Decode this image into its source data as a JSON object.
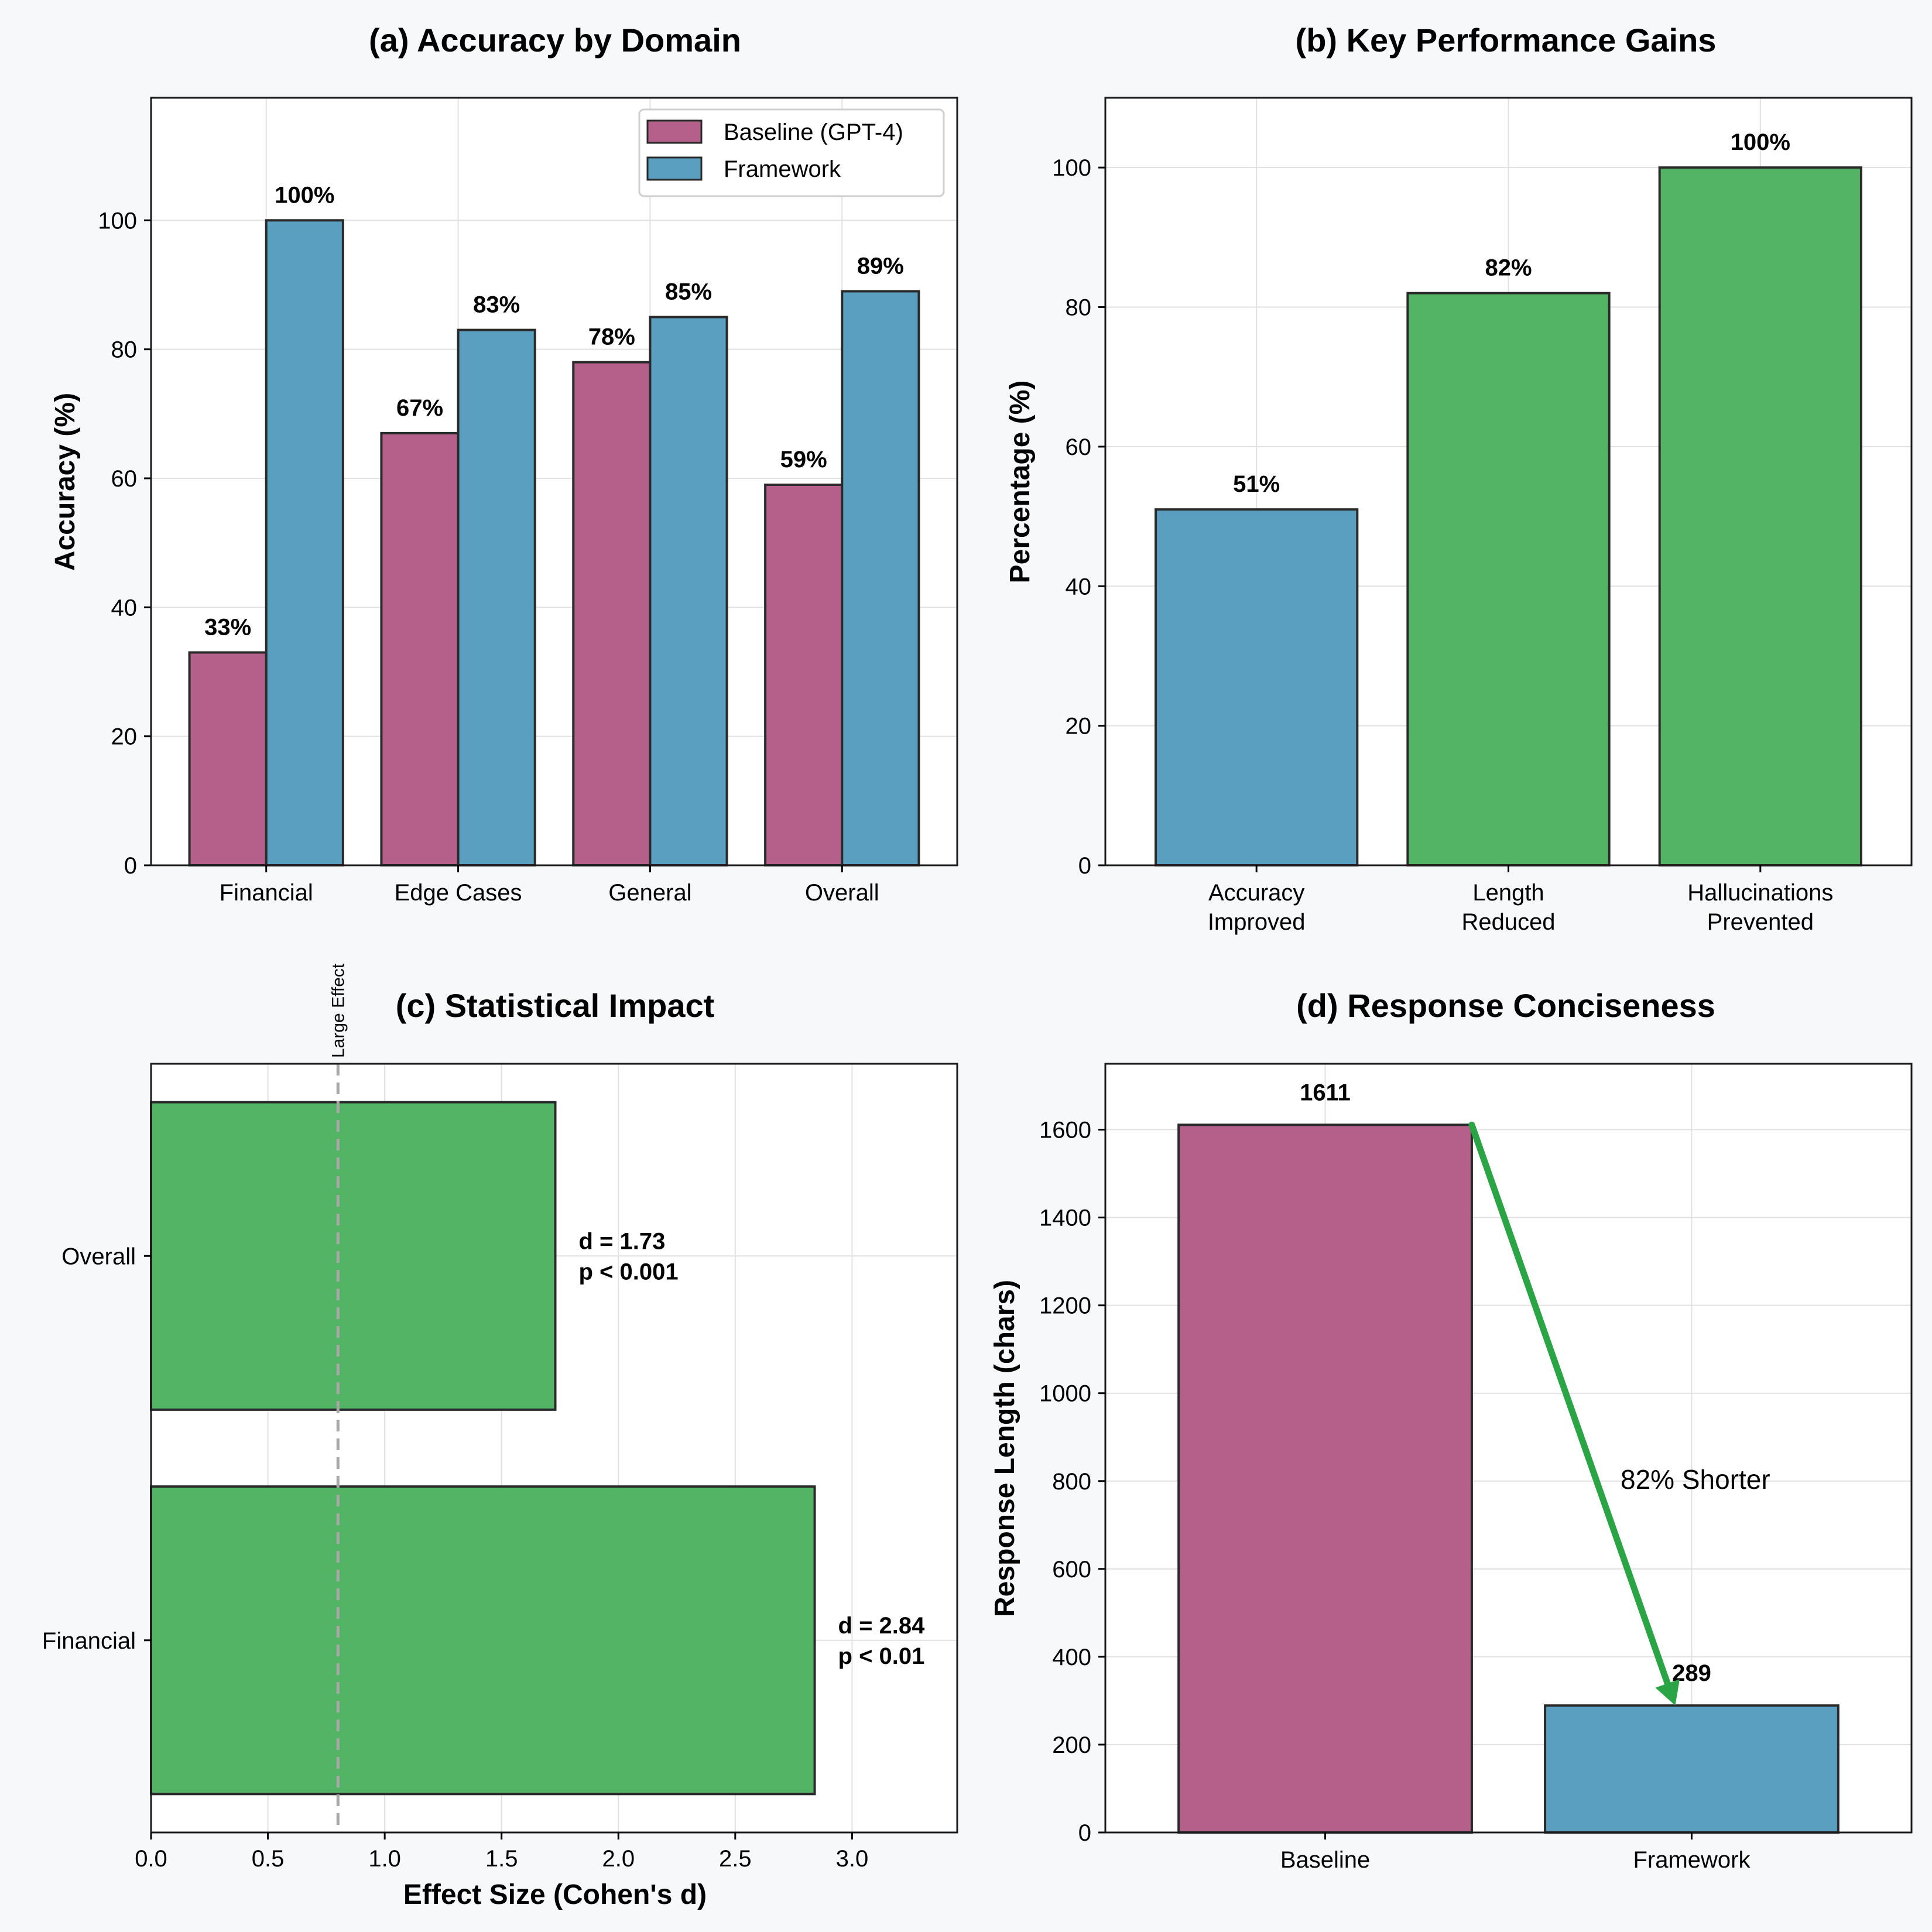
{
  "colors": {
    "baseline": "#b5608a",
    "framework": "#5a9fbf",
    "green": "#53b466",
    "arrow": "#2aa444",
    "dashed": "#a8a8a8"
  },
  "chart_data": [
    {
      "id": "a",
      "type": "bar",
      "title": "(a) Accuracy by Domain",
      "xlabel": "",
      "ylabel": "Accuracy (%)",
      "categories": [
        "Financial",
        "Edge Cases",
        "General",
        "Overall"
      ],
      "series": [
        {
          "name": "Baseline (GPT-4)",
          "values": [
            33,
            67,
            78,
            59
          ],
          "labels": [
            "33%",
            "67%",
            "78%",
            "59%"
          ]
        },
        {
          "name": "Framework",
          "values": [
            100,
            83,
            85,
            89
          ],
          "labels": [
            "100%",
            "83%",
            "85%",
            "89%"
          ]
        }
      ],
      "ylim": [
        0,
        119
      ],
      "yticks": [
        0,
        20,
        40,
        60,
        80,
        100
      ],
      "grid": true,
      "legend": "top-right"
    },
    {
      "id": "b",
      "type": "bar",
      "title": "(b) Key Performance Gains",
      "xlabel": "",
      "ylabel": "Percentage (%)",
      "categories": [
        [
          "Accuracy",
          "Improved"
        ],
        [
          "Length",
          "Reduced"
        ],
        [
          "Hallucinations",
          "Prevented"
        ]
      ],
      "values": [
        51,
        82,
        100
      ],
      "labels": [
        "51%",
        "82%",
        "100%"
      ],
      "bar_colors": [
        "framework",
        "green",
        "green"
      ],
      "ylim": [
        0,
        110
      ],
      "yticks": [
        0,
        20,
        40,
        60,
        80,
        100
      ],
      "grid": true
    },
    {
      "id": "c",
      "type": "bar",
      "orientation": "horizontal",
      "title": "(c) Statistical Impact",
      "xlabel": "Effect Size (Cohen's d)",
      "ylabel": "",
      "categories": [
        "Financial",
        "Overall"
      ],
      "values": [
        2.84,
        1.73
      ],
      "annotations": [
        [
          "d = 2.84",
          "p < 0.01"
        ],
        [
          "d = 1.73",
          "p < 0.001"
        ]
      ],
      "xlim": [
        0,
        3.45
      ],
      "xticks": [
        "0.0",
        "0.5",
        "1.0",
        "1.5",
        "2.0",
        "2.5",
        "3.0"
      ],
      "reference_line": {
        "value": 0.8,
        "label": "Large Effect"
      },
      "grid": true
    },
    {
      "id": "d",
      "type": "bar",
      "title": "(d) Response Conciseness",
      "xlabel": "",
      "ylabel": "Response Length (chars)",
      "categories": [
        "Baseline",
        "Framework"
      ],
      "values": [
        1611,
        289
      ],
      "labels": [
        "1611",
        "289"
      ],
      "bar_colors": [
        "baseline",
        "framework"
      ],
      "ylim": [
        0,
        1750
      ],
      "yticks": [
        0,
        200,
        400,
        600,
        800,
        1000,
        1200,
        1400,
        1600
      ],
      "arrow_annotation": {
        "text": "82% Shorter",
        "from": 1611,
        "to": 289
      },
      "grid": true
    }
  ]
}
